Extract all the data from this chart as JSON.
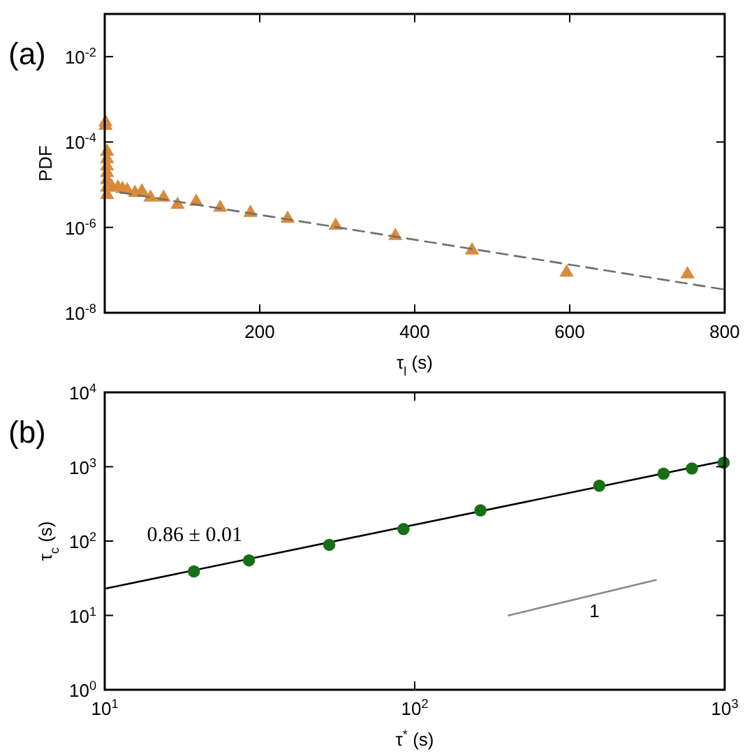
{
  "chart_data": [
    {
      "type": "scatter",
      "title": "(a)",
      "xlabel": "τ$_{l}$ (s)",
      "ylabel": "PDF",
      "log": "y",
      "xlim": [
        0,
        800
      ],
      "xticks": [
        200,
        400,
        600,
        800
      ],
      "ylim": [
        1e-08,
        0.1
      ],
      "yticks": [
        {
          "value": 1e-08,
          "label": "10$^{-8}$"
        },
        {
          "value": 1e-06,
          "label": "10$^{-6}$"
        },
        {
          "value": 0.0001,
          "label": "10$^{-4}$"
        },
        {
          "value": 0.01,
          "label": "10$^{-2}$"
        }
      ],
      "series": [
        {
          "marker": "triangle",
          "color": "#d98b3a",
          "x": [
            1,
            1,
            3,
            3,
            3,
            3,
            3,
            3,
            3,
            9,
            17,
            23,
            29,
            39,
            48,
            59,
            76,
            94,
            118,
            149,
            188,
            236,
            298,
            375,
            474,
            596,
            752
          ],
          "values": [
            0.00029,
            0.00024,
            6e-05,
            4e-05,
            2.7e-05,
            1.9e-05,
            1.3e-05,
            8.6e-06,
            5.8e-06,
            9e-06,
            8.6e-06,
            8e-06,
            7.5e-06,
            6.5e-06,
            7e-06,
            5e-06,
            5e-06,
            3.4e-06,
            4e-06,
            2.9e-06,
            2.2e-06,
            1.6e-06,
            1.1e-06,
            6.3e-07,
            2.9e-07,
            8.8e-08,
            8e-08
          ]
        },
        {
          "type": "line",
          "line_style": "dashed",
          "color": "#707070",
          "x": [
            20,
            800
          ],
          "values": [
            6.6e-06,
            3.5e-08
          ]
        }
      ]
    },
    {
      "type": "scatter",
      "title": "(b)",
      "xlabel": "τ$^{*}$ (s)",
      "ylabel": "τ$_{c}$ (s)",
      "log": "xy",
      "xlim": [
        10,
        1000
      ],
      "xticks": [
        {
          "value": 10,
          "label": "10$^{1}$"
        },
        {
          "value": 100,
          "label": "10$^{2}$"
        },
        {
          "value": 1000,
          "label": "10$^{3}$"
        }
      ],
      "ylim": [
        1,
        10000
      ],
      "yticks": [
        {
          "value": 1,
          "label": "10$^{0}$"
        },
        {
          "value": 10,
          "label": "10$^{1}$"
        },
        {
          "value": 100,
          "label": "10$^{2}$"
        },
        {
          "value": 1000,
          "label": "10$^{3}$"
        },
        {
          "value": 10000,
          "label": "10$^{4}$"
        }
      ],
      "annotations": [
        "0.86 ± 0.01",
        "1"
      ],
      "series": [
        {
          "type": "line",
          "line_style": "solid",
          "color": "#000000",
          "x": [
            10,
            1000
          ],
          "values": [
            22.9,
            1200
          ]
        },
        {
          "type": "line",
          "line_style": "solid",
          "color": "#888888",
          "x": [
            201,
            600
          ],
          "values": [
            10,
            30
          ]
        },
        {
          "marker": "circle",
          "color": "#157015",
          "x": [
            19.4,
            29.2,
            53,
            92,
            163,
            394,
            635,
            784,
            993
          ],
          "values": [
            39,
            55,
            89,
            145,
            259,
            555,
            805,
            948,
            1135
          ]
        }
      ]
    }
  ]
}
